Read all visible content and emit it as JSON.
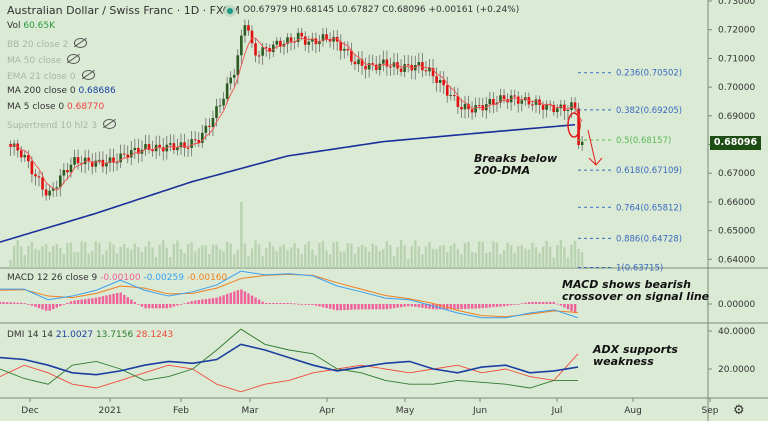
{
  "header": {
    "title": "Australian Dollar / Swiss Franc · 1D · FXCM",
    "ohlc": "O0.67979 H0.68145 L0.67827 C0.68096 +0.00161 (+0.24%)"
  },
  "legend": {
    "vol_label": "Vol",
    "vol_value": "60.65K",
    "bb": "BB 20 close 2",
    "ma50": "MA 50 close",
    "ema21": "EMA 21 close 0",
    "ma200": "MA 200 close 0",
    "ma200_value": "0.68686",
    "ma5": "MA 5 close 0",
    "ma5_value": "0.68770",
    "supertrend": "Supertrend 10 hl2 3"
  },
  "macd_legend": {
    "label": "MACD 12 26 close 9",
    "hist": "-0.00100",
    "macd": "-0.00259",
    "signal": "-0.00160"
  },
  "dmi_legend": {
    "label": "DMI 14 14",
    "adx": "21.0027",
    "plus": "13.7156",
    "minus": "28.1243"
  },
  "annotations": {
    "ma_break": [
      "Breaks below",
      "200-DMA"
    ],
    "macd": [
      "MACD shows bearish",
      "crossover on signal line"
    ],
    "adx": [
      "ADX supports",
      "weakness"
    ]
  },
  "current_price": "0.68096",
  "colors": {
    "bg": "#dbead5",
    "up": "#2b5a23",
    "down": "#e01010",
    "ma200": "#1a2f9a",
    "ma5": "#f05050",
    "fib": "#3a6ac0",
    "fib_mid": "#5cb85c",
    "macd": "#3aa0f0",
    "signal": "#f08020",
    "hist": "#f0609a",
    "adx": "#1a3fa0",
    "plus": "#2e7a2e",
    "minus": "#f04a3a"
  },
  "chart_data": [
    {
      "type": "candlestick",
      "title": "AUD/CHF 1D",
      "price_axis": [
        "0.73000",
        "0.72000",
        "0.71000",
        "0.70000",
        "0.69000",
        "0.68000",
        "0.67000",
        "0.66000",
        "0.65000",
        "0.64000"
      ],
      "time_axis": [
        "Dec",
        "2021",
        "Feb",
        "Mar",
        "Apr",
        "May",
        "Jun",
        "Jul",
        "Aug",
        "Sep"
      ],
      "close_path": [
        [
          "2020-11-25",
          0.682
        ],
        [
          "2020-11-30",
          0.679
        ],
        [
          "2020-12-10",
          0.661
        ],
        [
          "2020-12-20",
          0.672
        ],
        [
          "2021-01-01",
          0.676
        ],
        [
          "2021-01-10",
          0.678
        ],
        [
          "2021-01-22",
          0.676
        ],
        [
          "2021-02-01",
          0.68
        ],
        [
          "2021-02-08",
          0.685
        ],
        [
          "2021-02-16",
          0.695
        ],
        [
          "2021-02-22",
          0.705
        ],
        [
          "2021-02-26",
          0.722
        ],
        [
          "2021-03-01",
          0.709
        ],
        [
          "2021-03-05",
          0.712
        ],
        [
          "2021-03-11",
          0.717
        ],
        [
          "2021-03-19",
          0.72
        ],
        [
          "2021-03-23",
          0.716
        ],
        [
          "2021-03-31",
          0.715
        ],
        [
          "2021-04-10",
          0.708
        ],
        [
          "2021-04-16",
          0.709
        ],
        [
          "2021-04-22",
          0.711
        ],
        [
          "2021-04-28",
          0.707
        ],
        [
          "2021-05-06",
          0.705
        ],
        [
          "2021-05-14",
          0.7
        ],
        [
          "2021-05-22",
          0.695
        ],
        [
          "2021-06-03",
          0.695
        ],
        [
          "2021-06-15",
          0.693
        ],
        [
          "2021-06-27",
          0.695
        ],
        [
          "2021-07-05",
          0.695
        ],
        [
          "2021-07-08",
          0.692
        ],
        [
          "2021-07-09",
          0.681
        ]
      ],
      "ma200_path": [
        0.646,
        0.656,
        0.667,
        0.676,
        0.681,
        0.684,
        0.6869
      ],
      "fibonacci": [
        {
          "label": "0.236(0.70502)",
          "value": 0.70502
        },
        {
          "label": "0.382(0.69205)",
          "value": 0.69205
        },
        {
          "label": "0.5(0.68157)",
          "value": 0.68157
        },
        {
          "label": "0.618(0.67109)",
          "value": 0.67109
        },
        {
          "label": "0.764(0.65812)",
          "value": 0.65812
        },
        {
          "label": "0.886(0.64728)",
          "value": 0.64728
        },
        {
          "label": "1(0.63715)",
          "value": 0.63715
        }
      ]
    },
    {
      "type": "line",
      "title": "MACD 12 26 close 9",
      "axis": [
        "0.00000"
      ],
      "macd": [
        0.0028,
        0.0028,
        0.0008,
        0.0015,
        0.0026,
        0.0045,
        0.0026,
        0.0015,
        0.0023,
        0.0036,
        0.0062,
        0.0055,
        0.0057,
        0.0053,
        0.0034,
        0.0023,
        0.0011,
        0.0008,
        -0.0004,
        -0.0017,
        -0.0026,
        -0.0026,
        -0.0017,
        -0.0011,
        -0.0026
      ],
      "signal": [
        0.0026,
        0.0027,
        0.0015,
        0.0012,
        0.002,
        0.0034,
        0.003,
        0.0019,
        0.002,
        0.003,
        0.0048,
        0.0054,
        0.0056,
        0.0054,
        0.004,
        0.0028,
        0.0016,
        0.001,
        0.0001,
        -0.0012,
        -0.0022,
        -0.0024,
        -0.0019,
        -0.0013,
        -0.0016
      ]
    },
    {
      "type": "line",
      "title": "DMI 14 14",
      "axis": [
        "40.0000",
        "20.0000"
      ],
      "adx": [
        26,
        25,
        22,
        18,
        17,
        19,
        22,
        24,
        23,
        25,
        33,
        30,
        26,
        22,
        19,
        21,
        23,
        24,
        20,
        18,
        21,
        22,
        18,
        19,
        21
      ],
      "di_plus": [
        20,
        15,
        12,
        22,
        24,
        20,
        14,
        16,
        20,
        30,
        41,
        33,
        30,
        28,
        20,
        18,
        14,
        12,
        12,
        14,
        13,
        12,
        10,
        14,
        14
      ],
      "di_minus": [
        16,
        22,
        18,
        12,
        10,
        14,
        18,
        22,
        20,
        12,
        8,
        12,
        14,
        18,
        20,
        22,
        20,
        18,
        20,
        22,
        18,
        20,
        16,
        14,
        28
      ]
    }
  ]
}
